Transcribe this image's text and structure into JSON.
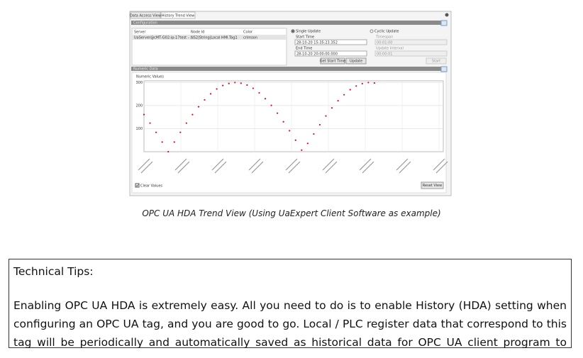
{
  "screenshot": {
    "tabs": [
      "Data Access View",
      "History Trend View"
    ],
    "configuration": {
      "header": "Configuration",
      "columns": [
        "Server",
        "Node Id",
        "Color"
      ],
      "row": [
        "UaServer@cMT-G02-ip-17test - ...",
        "NS2|String|Local HMI.Tag1",
        "crimson"
      ],
      "single_update": "Single Update",
      "start_time_label": "Start Time",
      "start_time": "28-10-20 15:35:23.352",
      "end_time_label": "End Time",
      "end_time": "28-10-20 20:00:00.000",
      "get_start_time": "Get Start Time",
      "update": "Update",
      "cyclic_update": "Cyclic Update",
      "timespan_label": "Timespan",
      "timespan": "00:01:00",
      "interval_label": "Update Interval",
      "interval": "00:00:01",
      "start": "Start"
    },
    "numeric": {
      "header": "Numeric Data",
      "chart_title": "Numeric Values",
      "ylim": [
        0,
        305
      ],
      "yticks": [
        100,
        200,
        300
      ],
      "color": "#c8102e",
      "values": [
        161,
        124,
        84,
        42,
        0,
        42,
        84,
        124,
        161,
        195,
        225,
        251,
        272,
        287,
        296,
        300,
        297,
        289,
        275,
        255,
        230,
        201,
        167,
        130,
        91,
        50,
        7,
        36,
        77,
        117,
        155,
        190,
        221,
        247,
        269,
        285,
        295,
        300,
        298
      ],
      "clear_values": "Clear Values",
      "reset_view": "Reset View"
    }
  },
  "caption": "OPC UA HDA Trend View (Using UaExpert Client Software as example)",
  "tips": {
    "title": "Technical Tips:",
    "body": "Enabling OPC UA HDA is extremely easy. All you need to do is to enable History (HDA) setting when configuring an OPC UA tag, and you are good to go. Local / PLC register data that correspond to this tag will be periodically and automatically saved as historical data for OPC UA client program to access."
  }
}
